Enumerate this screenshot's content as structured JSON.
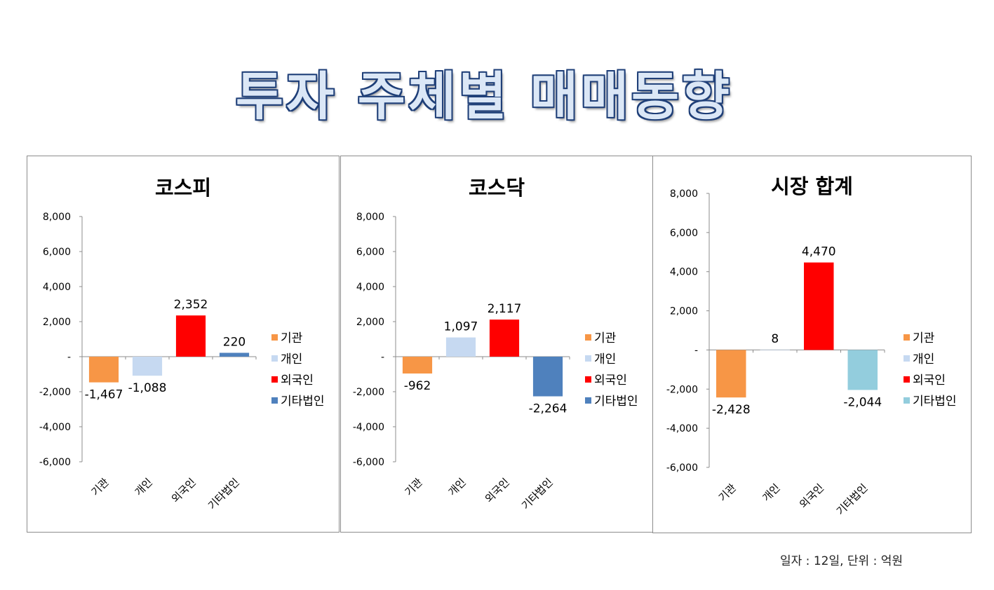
{
  "page": {
    "title": "투자 주체별 매매동향",
    "footer_note": "일자 : 12일, 단위 : 억원"
  },
  "chart_data": [
    {
      "type": "bar",
      "title": "코스피",
      "categories": [
        "기관",
        "개인",
        "외국인",
        "기타법인"
      ],
      "values": [
        -1467,
        -1088,
        2352,
        220
      ],
      "value_labels": [
        "-1,467",
        "-1,088",
        "2,352",
        "220"
      ],
      "colors": [
        "#f79646",
        "#c6d9f1",
        "#ff0000",
        "#4f81bd"
      ],
      "ylim": [
        -6000,
        8000
      ],
      "yticks": [
        8000,
        6000,
        4000,
        2000,
        0,
        -2000,
        -4000,
        -6000
      ],
      "ytick_labels": [
        "8,000",
        "6,000",
        "4,000",
        "2,000",
        "-",
        "-2,000",
        "-4,000",
        "-6,000"
      ],
      "legend": [
        "기관",
        "개인",
        "외국인",
        "기타법인"
      ],
      "legend_position": "right",
      "xlabel": "",
      "ylabel": "",
      "grid": false
    },
    {
      "type": "bar",
      "title": "코스닥",
      "categories": [
        "기관",
        "개인",
        "외국인",
        "기타법인"
      ],
      "values": [
        -962,
        1097,
        2117,
        -2264
      ],
      "value_labels": [
        "-962",
        "1,097",
        "2,117",
        "-2,264"
      ],
      "colors": [
        "#f79646",
        "#c6d9f1",
        "#ff0000",
        "#4f81bd"
      ],
      "ylim": [
        -6000,
        8000
      ],
      "yticks": [
        8000,
        6000,
        4000,
        2000,
        0,
        -2000,
        -4000,
        -6000
      ],
      "ytick_labels": [
        "8,000",
        "6,000",
        "4,000",
        "2,000",
        "-",
        "-2,000",
        "-4,000",
        "-6,000"
      ],
      "legend": [
        "기관",
        "개인",
        "외국인",
        "기타법인"
      ],
      "legend_position": "right",
      "xlabel": "",
      "ylabel": "",
      "grid": false
    },
    {
      "type": "bar",
      "title": "시장 합계",
      "categories": [
        "기관",
        "개인",
        "외국인",
        "기타법인"
      ],
      "values": [
        -2428,
        8,
        4470,
        -2044
      ],
      "value_labels": [
        "-2,428",
        "8",
        "4,470",
        "-2,044"
      ],
      "colors": [
        "#f79646",
        "#c6d9f1",
        "#ff0000",
        "#93cddd"
      ],
      "ylim": [
        -6000,
        8000
      ],
      "yticks": [
        8000,
        6000,
        4000,
        2000,
        0,
        -2000,
        -4000,
        -6000
      ],
      "ytick_labels": [
        "8,000",
        "6,000",
        "4,000",
        "2,000",
        "-",
        "-2,000",
        "-4,000",
        "-6,000"
      ],
      "legend": [
        "기관",
        "개인",
        "외국인",
        "기타법인"
      ],
      "legend_position": "right",
      "xlabel": "",
      "ylabel": "",
      "grid": false
    }
  ]
}
